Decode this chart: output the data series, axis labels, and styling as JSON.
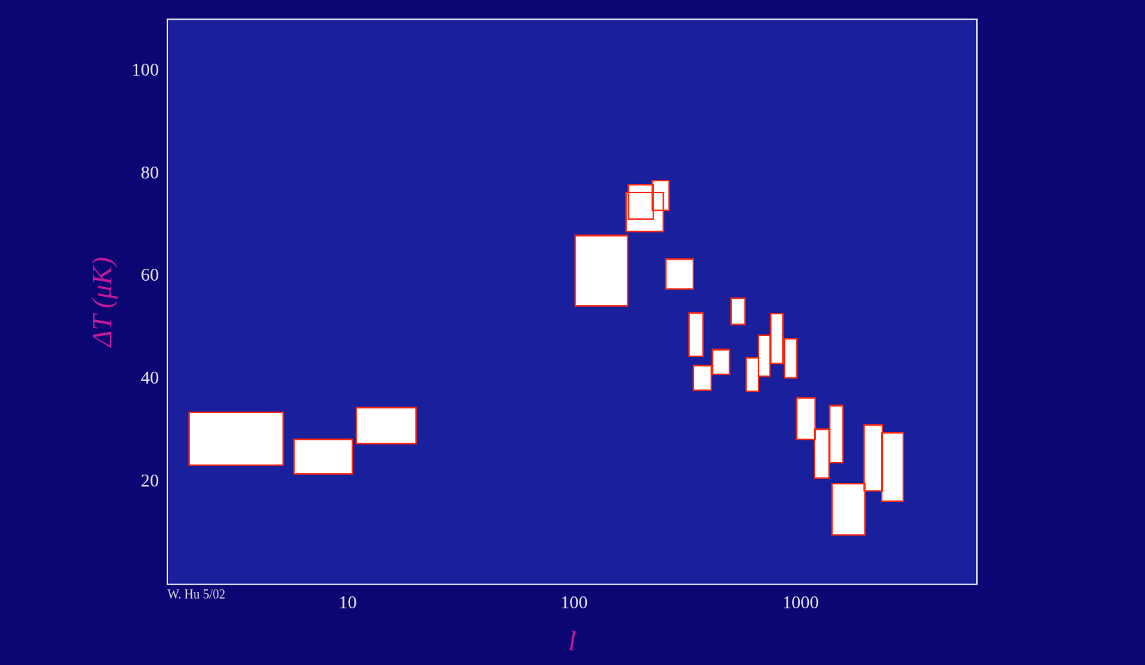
{
  "chart_data": {
    "type": "bar",
    "xlabel": "l",
    "ylabel": "ΔT (μK)",
    "log": "x",
    "grid": false,
    "legend": false,
    "xlim": [
      1.6,
      6000
    ],
    "xticks": [
      10,
      100,
      1000
    ],
    "ylim": [
      0,
      110
    ],
    "yticks": [
      20,
      40,
      60,
      80,
      100
    ],
    "annotations": [
      "W. Hu 5/02"
    ],
    "series": [
      {
        "color": "#ffffff",
        "x": [
          3.22,
          7.8,
          14.8,
          132,
          197,
          205,
          241,
          292,
          345,
          368,
          445,
          529,
          612,
          690,
          785,
          903,
          1055,
          1239,
          1436,
          1627,
          2091,
          2544
        ],
        "base": [
          23.2,
          21.5,
          27.4,
          54.2,
          71.1,
          68.7,
          72.8,
          57.5,
          44.4,
          37.8,
          40.9,
          50.6,
          37.6,
          40.5,
          43,
          40.2,
          28.2,
          20.7,
          23.7,
          9.6,
          18.2,
          16.2
        ],
        "values": [
          10.3,
          6.7,
          7,
          13.7,
          6.7,
          7.6,
          5.8,
          5.8,
          8.4,
          4.8,
          4.8,
          5.1,
          6.5,
          8,
          9.7,
          7.6,
          8.1,
          9.5,
          11.1,
          10,
          12.8,
          13.3
        ],
        "xerrors": [
          [
            2,
            5.2
          ],
          [
            5.8,
            10.5
          ],
          [
            10.9,
            20
          ],
          [
            101,
            172
          ],
          [
            174,
            224
          ],
          [
            170,
            248
          ],
          [
            221,
            262
          ],
          [
            254,
            336
          ],
          [
            321,
            370
          ],
          [
            336,
            403
          ],
          [
            408,
            485
          ],
          [
            493,
            567
          ],
          [
            575,
            651
          ],
          [
            651,
            732
          ],
          [
            738,
            835
          ],
          [
            849,
            961
          ],
          [
            961,
            1159
          ],
          [
            1151,
            1334
          ],
          [
            1343,
            1535
          ],
          [
            1377,
            1923
          ],
          [
            1905,
            2296
          ],
          [
            2280,
            2838
          ]
        ]
      }
    ]
  }
}
